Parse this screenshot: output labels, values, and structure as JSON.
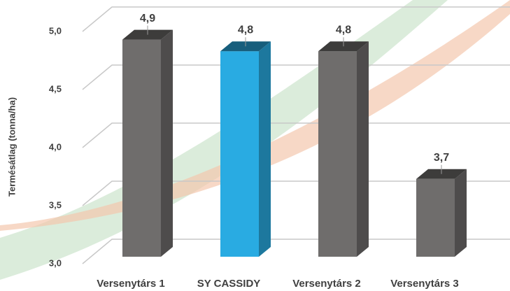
{
  "chart_data": {
    "type": "bar3d",
    "y_label": "Termésátlag (tonna/ha)",
    "categories": [
      "Versenytárs 1",
      "SY CASSIDY",
      "Versenytárs 2",
      "Versenytárs 3"
    ],
    "values": [
      4.9,
      4.8,
      4.8,
      3.7
    ],
    "value_labels": [
      "4,9",
      "4,8",
      "4,8",
      "3,7"
    ],
    "colors": [
      "#6f6d6c",
      "#29abe2",
      "#6f6d6c",
      "#6f6d6c"
    ],
    "ylim": [
      3.0,
      5.0
    ],
    "yticks": [
      {
        "value": 3.0,
        "label": "3,0"
      },
      {
        "value": 3.5,
        "label": "3,5"
      },
      {
        "value": 4.0,
        "label": "4,0"
      },
      {
        "value": 4.5,
        "label": "4,5"
      },
      {
        "value": 5.0,
        "label": "5,0"
      }
    ],
    "grid": true
  }
}
